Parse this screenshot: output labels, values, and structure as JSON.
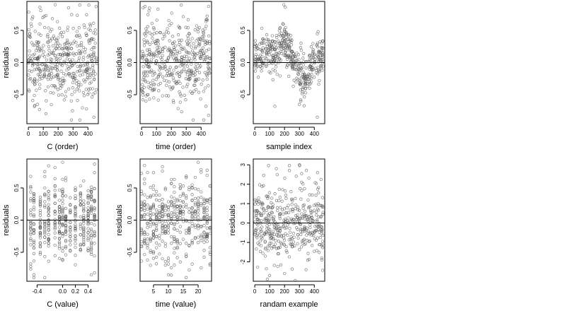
{
  "chart_data": [
    {
      "type": "scatter",
      "title": "",
      "xlabel": "C (order)",
      "ylabel": "residuals",
      "xlim": [
        -10,
        470
      ],
      "ylim": [
        -0.95,
        0.95
      ],
      "xticks": [
        0,
        100,
        200,
        300,
        400
      ],
      "xtick_labels": [
        "0",
        "100",
        "200",
        "300",
        "400"
      ],
      "yticks": [
        -0.5,
        0.0,
        0.5
      ],
      "ytick_labels": [
        "-0.5",
        "0.0",
        "0.5"
      ],
      "reference_line_y": 0,
      "pattern": "uniform",
      "x_range": [
        0,
        460
      ],
      "spread": 0.32,
      "n_points": 440,
      "seed": 11,
      "points": [
        [
          25,
          0.68
        ],
        [
          180,
          0.9
        ],
        [
          270,
          0.85
        ],
        [
          455,
          0.87
        ],
        [
          60,
          -0.65
        ],
        [
          440,
          -0.85
        ],
        [
          390,
          -0.72
        ]
      ]
    },
    {
      "type": "scatter",
      "title": "",
      "xlabel": "time (order)",
      "ylabel": "residuals",
      "xlim": [
        -10,
        470
      ],
      "ylim": [
        -0.95,
        0.95
      ],
      "xticks": [
        0,
        100,
        200,
        300,
        400
      ],
      "xtick_labels": [
        "0",
        "100",
        "200",
        "300",
        "400"
      ],
      "yticks": [
        -0.5,
        0.0,
        0.5
      ],
      "ytick_labels": [
        "-0.5",
        "0.0",
        "0.5"
      ],
      "reference_line_y": 0,
      "pattern": "uniform",
      "x_range": [
        0,
        460
      ],
      "spread": 0.32,
      "n_points": 440,
      "seed": 23,
      "points": [
        [
          10,
          0.85
        ],
        [
          110,
          0.83
        ],
        [
          440,
          0.72
        ],
        [
          30,
          -0.6
        ],
        [
          215,
          -0.62
        ],
        [
          450,
          -0.82
        ]
      ]
    },
    {
      "type": "scatter",
      "title": "",
      "xlabel": "sample index",
      "ylabel": "residuals",
      "xlim": [
        -10,
        470
      ],
      "ylim": [
        -0.95,
        0.95
      ],
      "xticks": [
        0,
        100,
        200,
        300,
        400
      ],
      "xtick_labels": [
        "0",
        "100",
        "200",
        "300",
        "400"
      ],
      "yticks": [
        -0.5,
        0.0,
        0.5
      ],
      "ytick_labels": [
        "-0.5",
        "0.0",
        "0.5"
      ],
      "reference_line_y": 0,
      "pattern": "wave",
      "x_range": [
        0,
        460
      ],
      "spread": 0.16,
      "n_points": 440,
      "seed": 37,
      "points": [
        [
          195,
          0.9
        ],
        [
          205,
          0.86
        ],
        [
          135,
          -0.68
        ],
        [
          300,
          -0.65
        ],
        [
          420,
          -0.85
        ],
        [
          310,
          -0.6
        ]
      ]
    },
    {
      "type": "scatter",
      "title": "",
      "xlabel": "C (value)",
      "ylabel": "residuals",
      "xlim": [
        -0.56,
        0.56
      ],
      "ylim": [
        -0.95,
        0.95
      ],
      "xticks": [
        -0.4,
        0.0,
        0.2,
        0.4
      ],
      "xtick_labels": [
        "-0.4",
        "0.0",
        "0.2",
        "0.4"
      ],
      "yticks": [
        -0.5,
        0.0,
        0.5
      ],
      "ytick_labels": [
        "-0.5",
        "0.0",
        "0.5"
      ],
      "reference_line_y": 0,
      "pattern": "discrete",
      "levels": [
        -0.5,
        -0.45,
        -0.35,
        -0.28,
        -0.22,
        -0.12,
        -0.05,
        0.0,
        0.05,
        0.12,
        0.2,
        0.28,
        0.33,
        0.4,
        0.45,
        0.5
      ],
      "spread": 0.32,
      "n_points": 440,
      "seed": 41,
      "points": [
        [
          -0.5,
          0.68
        ],
        [
          0.0,
          0.9
        ],
        [
          0.5,
          0.87
        ],
        [
          -0.5,
          -0.68
        ],
        [
          0.45,
          -0.85
        ]
      ]
    },
    {
      "type": "scatter",
      "title": "",
      "xlabel": "time (value)",
      "ylabel": "residuals",
      "xlim": [
        0.5,
        24.5
      ],
      "ylim": [
        -0.95,
        0.95
      ],
      "xticks": [
        5,
        10,
        15,
        20
      ],
      "xtick_labels": [
        "5",
        "10",
        "15",
        "20"
      ],
      "yticks": [
        -0.5,
        0.0,
        0.5
      ],
      "ytick_labels": [
        "-0.5",
        "0.0",
        "0.5"
      ],
      "reference_line_y": 0,
      "pattern": "discrete",
      "levels": [
        1,
        2,
        3,
        4,
        5,
        6,
        7,
        8,
        9,
        10,
        11,
        12,
        13,
        14,
        15,
        16,
        17,
        18,
        19,
        20,
        21,
        22,
        23,
        24
      ],
      "spread": 0.32,
      "n_points": 440,
      "seed": 53,
      "points": [
        [
          2,
          0.85
        ],
        [
          8,
          0.83
        ],
        [
          20,
          0.9
        ],
        [
          3,
          -0.62
        ],
        [
          24,
          -0.68
        ],
        [
          12,
          -0.7
        ]
      ]
    },
    {
      "type": "scatter",
      "title": "",
      "xlabel": "randam example",
      "ylabel": "residuals",
      "xlim": [
        -10,
        470
      ],
      "ylim": [
        -3.0,
        3.3
      ],
      "xticks": [
        0,
        100,
        200,
        300,
        400
      ],
      "xtick_labels": [
        "0",
        "100",
        "200",
        "300",
        "400"
      ],
      "yticks": [
        -2,
        -1,
        0,
        1,
        2,
        3
      ],
      "ytick_labels": [
        "-2",
        "-1",
        "0",
        "1",
        "2",
        "3"
      ],
      "reference_line_y": 0,
      "pattern": "uniform",
      "x_range": [
        0,
        460
      ],
      "spread": 1.0,
      "n_points": 440,
      "seed": 67,
      "points": [
        [
          300,
          3.0
        ],
        [
          60,
          2.45
        ],
        [
          200,
          -2.6
        ],
        [
          100,
          -2.7
        ]
      ]
    }
  ]
}
